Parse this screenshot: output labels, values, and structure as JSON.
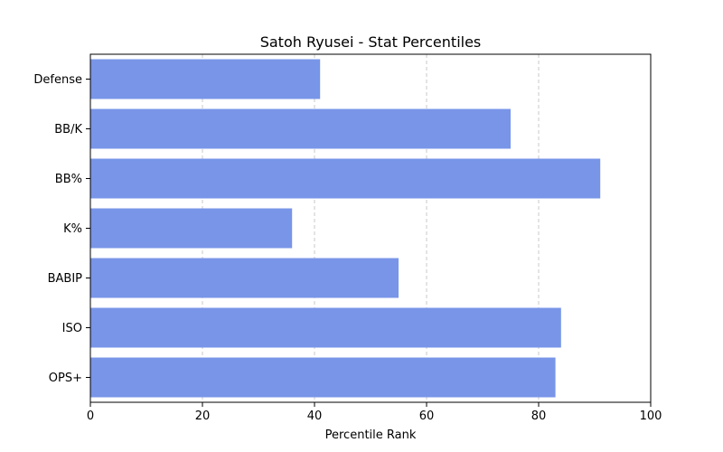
{
  "chart_data": {
    "type": "bar",
    "orientation": "horizontal",
    "title": "Satoh Ryusei - Stat Percentiles",
    "xlabel": "Percentile Rank",
    "ylabel": "",
    "xlim": [
      0,
      100
    ],
    "xticks": [
      "0",
      "20",
      "40",
      "60",
      "80",
      "100"
    ],
    "categories": [
      "Defense",
      "BB/K",
      "BB%",
      "K%",
      "BABIP",
      "ISO",
      "OPS+"
    ],
    "values": [
      41,
      75,
      91,
      36,
      55,
      84,
      83
    ],
    "bar_color": "#7895e8",
    "grid": "x-axis dashed",
    "legend": "none"
  }
}
